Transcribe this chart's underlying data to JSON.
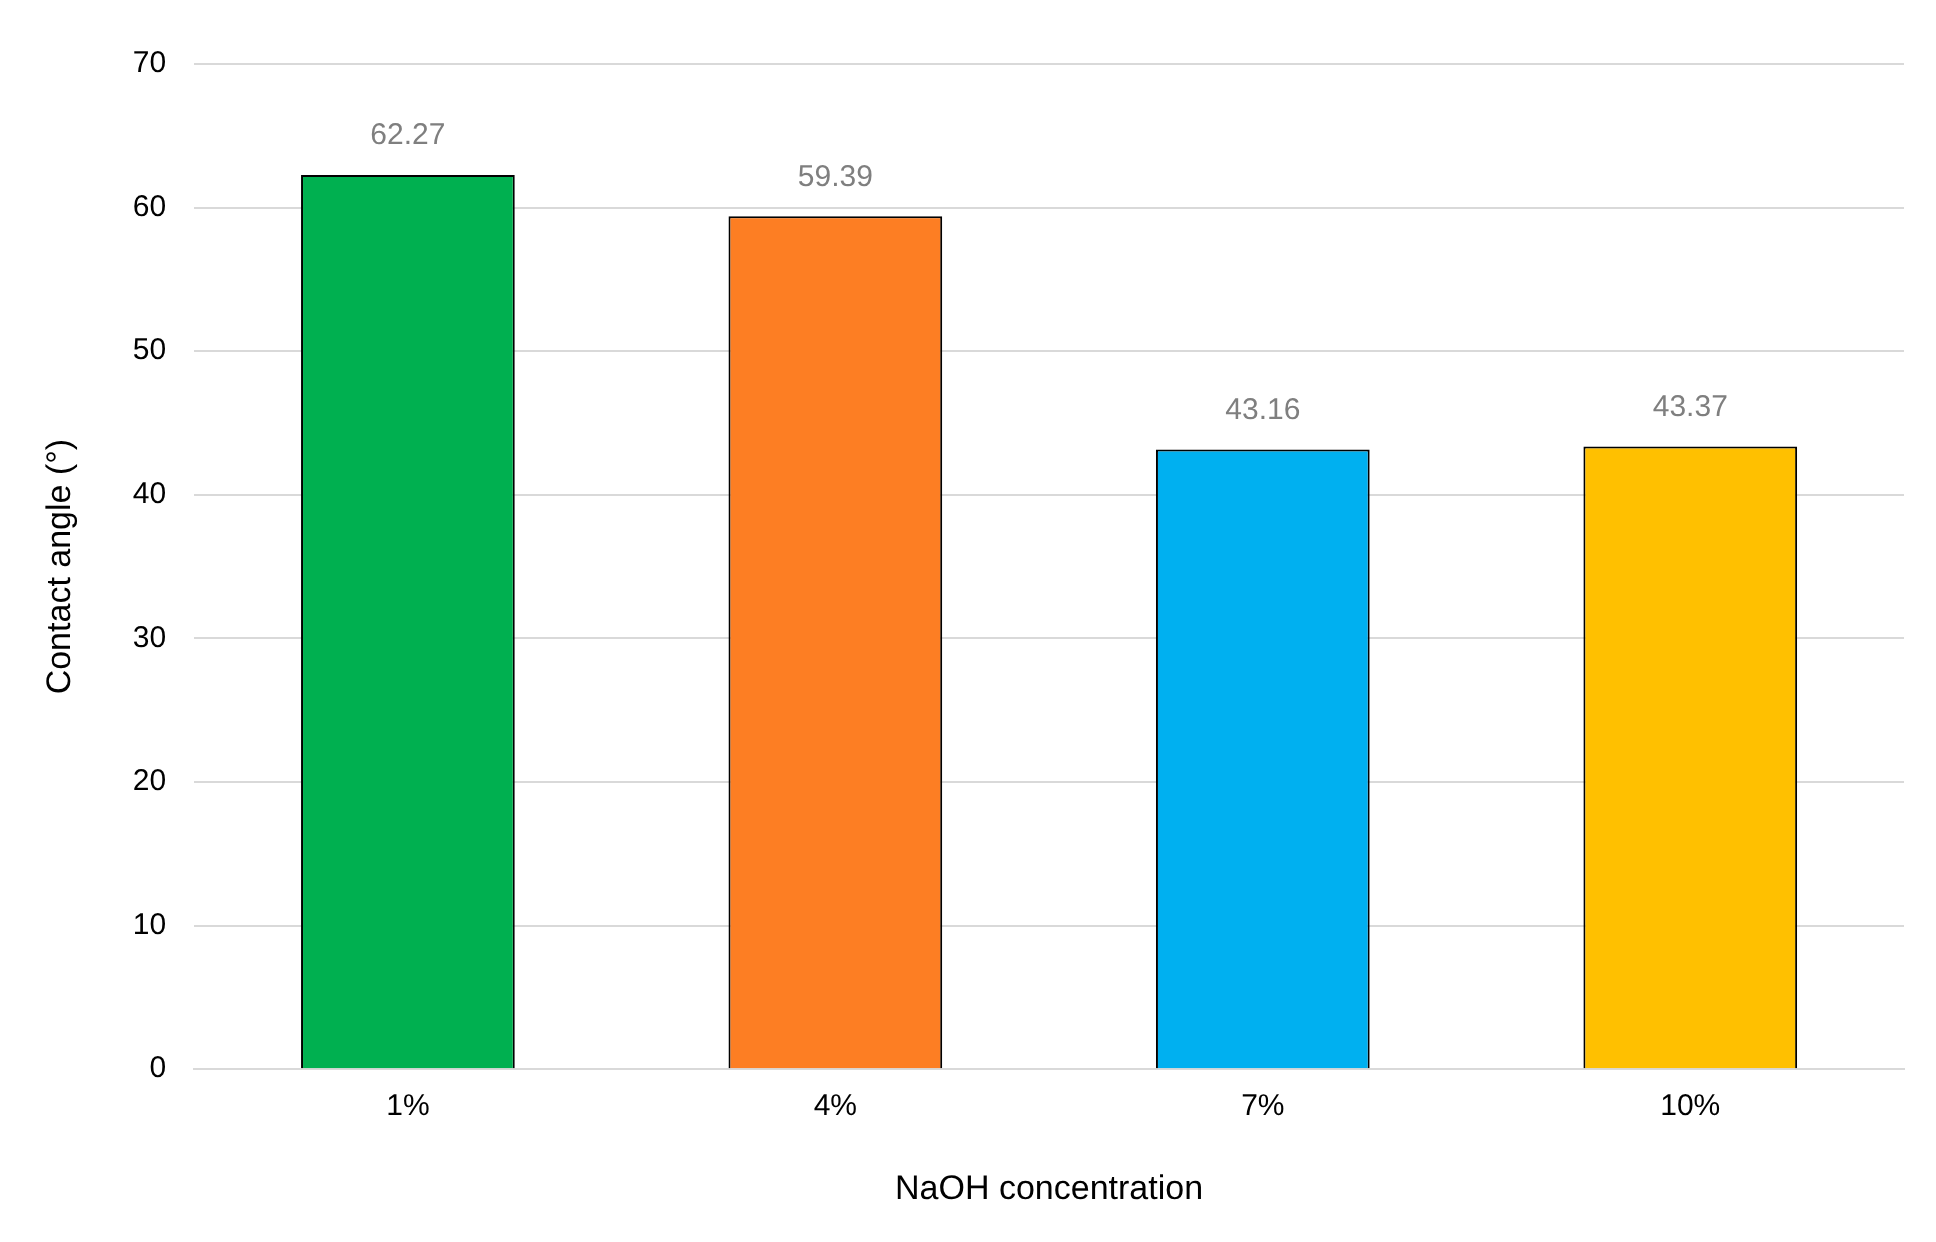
{
  "chart_data": {
    "type": "bar",
    "xlabel": "NaOH concentration",
    "ylabel": "Contact angle (°)",
    "categories": [
      "1%",
      "4%",
      "7%",
      "10%"
    ],
    "values": [
      62.27,
      59.39,
      43.16,
      43.37
    ],
    "colors": [
      "#00b050",
      "#fd7e23",
      "#00b0f0",
      "#ffc000"
    ],
    "ylim": [
      0,
      70
    ],
    "yticks": [
      0,
      10,
      20,
      30,
      40,
      50,
      60,
      70
    ],
    "grid": "y",
    "data_labels": true
  }
}
